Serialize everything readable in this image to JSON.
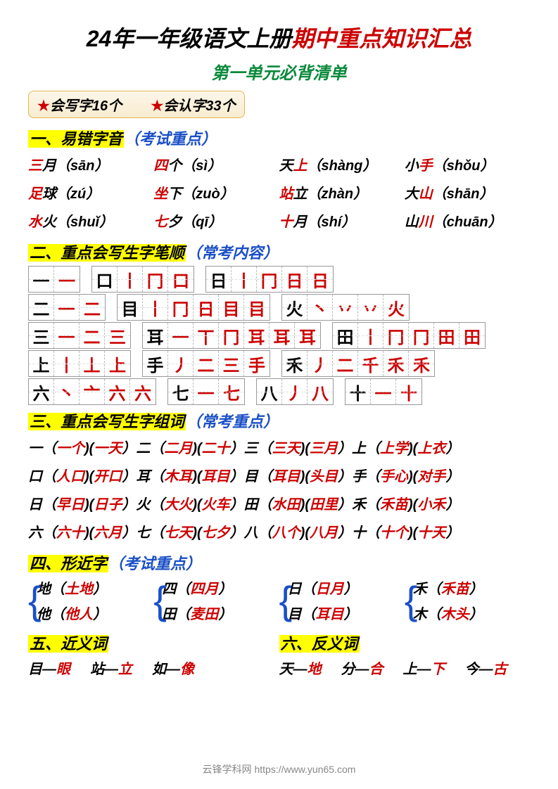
{
  "title": {
    "black": "24年一年级语文上册",
    "red": "期中重点知识汇总"
  },
  "subtitle": "第一单元必背清单",
  "badges": {
    "b1": "会写字16个",
    "b2": "会认字33个"
  },
  "sec1": {
    "hdr": "一、易错字音",
    "note": "（考试重点）",
    "items": [
      {
        "r": "三",
        "b": "月",
        "p": "sān"
      },
      {
        "r": "四",
        "b": "个",
        "p": "sì"
      },
      {
        "b1": "天",
        "r": "上",
        "p": "shàng"
      },
      {
        "b1": "小",
        "r": "手",
        "p": "shǒu"
      },
      {
        "r": "足",
        "b": "球",
        "p": "zú"
      },
      {
        "r": "坐",
        "b": "下",
        "p": "zuò"
      },
      {
        "r": "站",
        "b": "立",
        "p": "zhàn"
      },
      {
        "b1": "大",
        "r": "山",
        "p": "shān"
      },
      {
        "r": "水",
        "b": "火",
        "p": "shuǐ"
      },
      {
        "r": "七",
        "b": "夕",
        "p": "qī"
      },
      {
        "r": "十",
        "b": "月",
        "p": "shí"
      },
      {
        "b1": "山",
        "r": "川",
        "p": "chuān"
      }
    ]
  },
  "sec2": {
    "hdr": "二、重点会写生字笔顺",
    "note": "（常考内容）",
    "grids": {
      "r1": [
        {
          "h": "一",
          "s": [
            "一"
          ]
        },
        {
          "h": "口",
          "s": [
            "丨",
            "冂",
            "口"
          ]
        },
        {
          "h": "日",
          "s": [
            "丨",
            "冂",
            "日",
            "日"
          ]
        }
      ],
      "r2": [
        {
          "h": "二",
          "s": [
            "一",
            "二"
          ]
        },
        {
          "h": "目",
          "s": [
            "丨",
            "冂",
            "日",
            "目",
            "目"
          ]
        },
        {
          "h": "火",
          "s": [
            "丶",
            "丷",
            "丷",
            "火"
          ]
        }
      ],
      "r3": [
        {
          "h": "三",
          "s": [
            "一",
            "二",
            "三"
          ]
        },
        {
          "h": "耳",
          "s": [
            "一",
            "丅",
            "冂",
            "耳",
            "耳",
            "耳"
          ]
        },
        {
          "h": "田",
          "s": [
            "丨",
            "冂",
            "冂",
            "田",
            "田"
          ]
        }
      ],
      "r4": [
        {
          "h": "上",
          "s": [
            "丨",
            "丄",
            "上"
          ]
        },
        {
          "h": "手",
          "s": [
            "丿",
            "二",
            "三",
            "手"
          ]
        },
        {
          "h": "禾",
          "s": [
            "丿",
            "二",
            "千",
            "禾",
            "禾"
          ]
        }
      ],
      "r5": [
        {
          "h": "六",
          "s": [
            "丶",
            "亠",
            "六",
            "六"
          ]
        },
        {
          "h": "七",
          "s": [
            "一",
            "七"
          ]
        },
        {
          "h": "八",
          "s": [
            "丿",
            "八"
          ]
        },
        {
          "h": "十",
          "s": [
            "一",
            "十"
          ]
        }
      ]
    }
  },
  "sec3": {
    "hdr": "三、重点会写生字组词",
    "note": "（常考重点）",
    "lines": [
      [
        {
          "h": "一",
          "w": [
            "一个",
            "一天"
          ]
        },
        {
          "h": "二",
          "w": [
            "二月",
            "二十"
          ]
        },
        {
          "h": "三",
          "w": [
            "三天",
            "三月"
          ]
        },
        {
          "h": "上",
          "w": [
            "上学",
            "上衣"
          ]
        }
      ],
      [
        {
          "h": "口",
          "w": [
            "人口",
            "开口"
          ]
        },
        {
          "h": "耳",
          "w": [
            "木耳",
            "耳目"
          ]
        },
        {
          "h": "目",
          "w": [
            "耳目",
            "头目"
          ]
        },
        {
          "h": "手",
          "w": [
            "手心",
            "对手"
          ]
        }
      ],
      [
        {
          "h": "日",
          "w": [
            "早日",
            "日子"
          ]
        },
        {
          "h": "火",
          "w": [
            "大火",
            "火车"
          ]
        },
        {
          "h": "田",
          "w": [
            "水田",
            "田里"
          ]
        },
        {
          "h": "禾",
          "w": [
            "禾苗",
            "小禾"
          ]
        }
      ],
      [
        {
          "h": "六",
          "w": [
            "六十",
            "六月"
          ]
        },
        {
          "h": "七",
          "w": [
            "七天",
            "七夕"
          ]
        },
        {
          "h": "八",
          "w": [
            "八个",
            "八月"
          ]
        },
        {
          "h": "十",
          "w": [
            "十个",
            "十天"
          ]
        }
      ]
    ]
  },
  "sec4": {
    "hdr": "四、形近字",
    "note": "（考试重点）",
    "cols": [
      [
        {
          "h": "地",
          "w": "土地"
        },
        {
          "h": "他",
          "w": "他人"
        }
      ],
      [
        {
          "h": "四",
          "w": "四月"
        },
        {
          "h": "田",
          "w": "麦田"
        }
      ],
      [
        {
          "h": "日",
          "w": "日月"
        },
        {
          "h": "目",
          "w": "耳目"
        }
      ],
      [
        {
          "h": "禾",
          "w": "禾苗"
        },
        {
          "h": "木",
          "w": "木头"
        }
      ]
    ]
  },
  "sec5": {
    "hdr": "五、近义词",
    "items": [
      {
        "a": "目",
        "b": "眼"
      },
      {
        "a": "站",
        "b": "立"
      },
      {
        "a": "如",
        "b": "像"
      }
    ]
  },
  "sec6": {
    "hdr": "六、反义词",
    "items": [
      {
        "a": "天",
        "b": "地"
      },
      {
        "a": "分",
        "b": "合"
      },
      {
        "a": "上",
        "b": "下"
      },
      {
        "a": "今",
        "b": "古"
      }
    ]
  },
  "footer": "云锋学科网 https://www.yun65.com"
}
